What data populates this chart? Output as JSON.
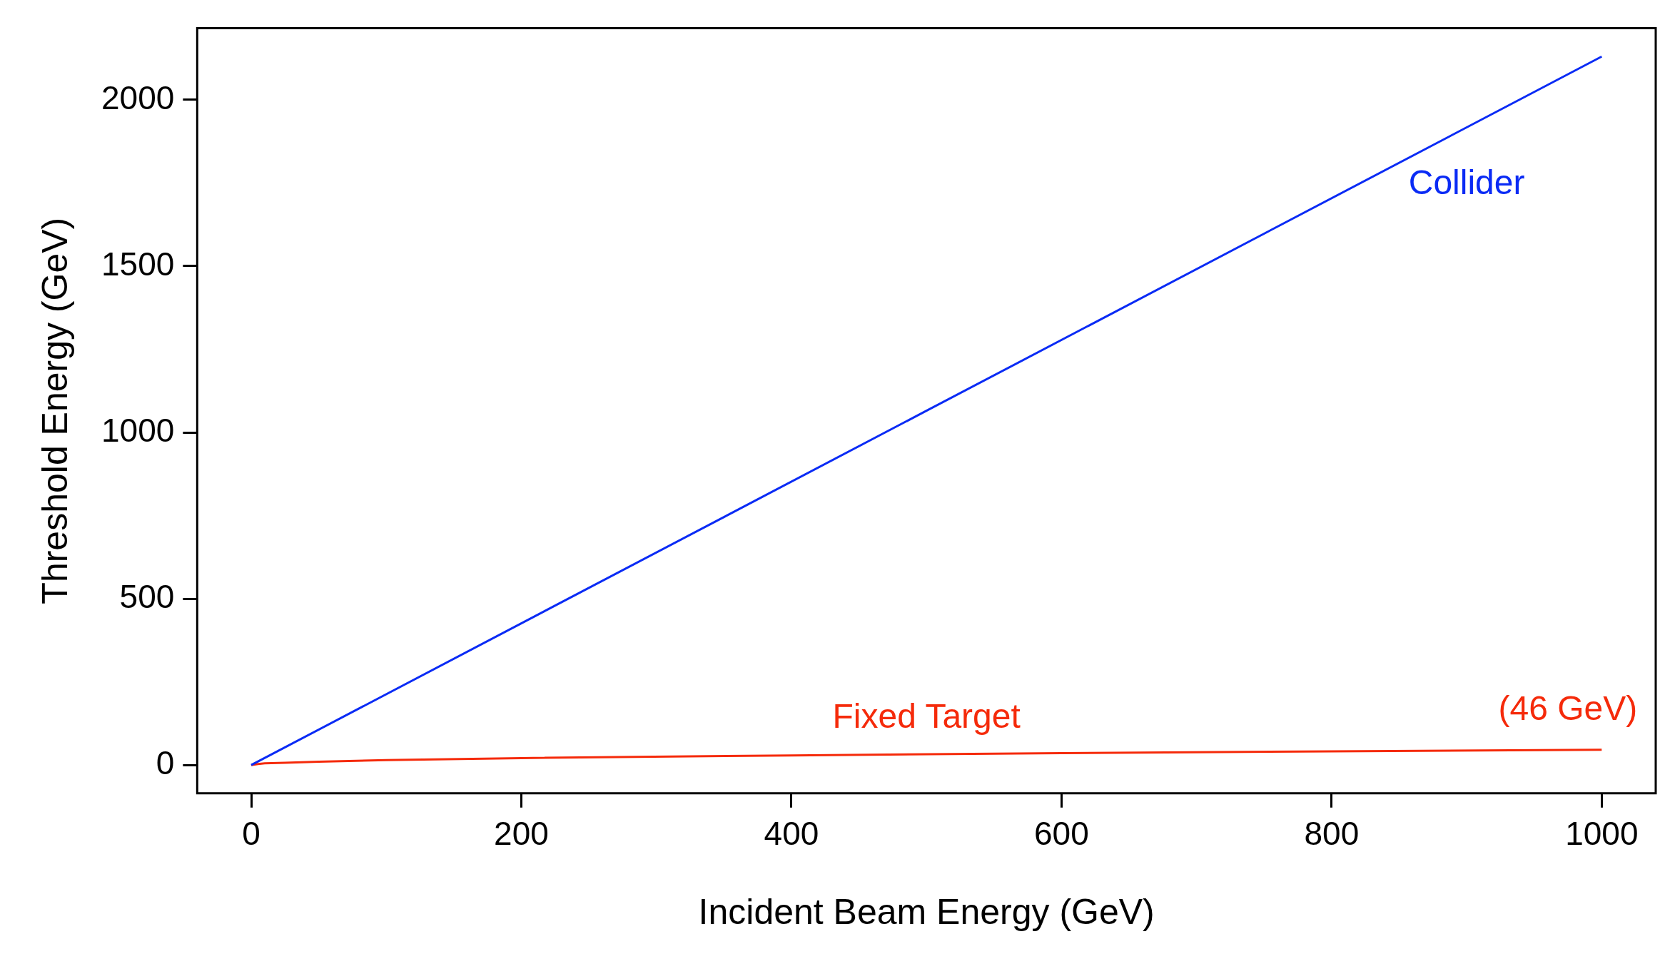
{
  "chart_data": {
    "type": "line",
    "xlabel": "Incident Beam Energy (GeV)",
    "ylabel": "Threshold Energy (GeV)",
    "xlim": [
      -40,
      1040
    ],
    "ylim": [
      -85,
      2215
    ],
    "xticks": [
      0,
      200,
      400,
      600,
      800,
      1000
    ],
    "yticks": [
      0,
      500,
      1000,
      1500,
      2000
    ],
    "grid": false,
    "legend": false,
    "marker": "none",
    "line_style": "solid",
    "series": [
      {
        "name": "Collider",
        "color": "#0a2bf5",
        "x": [
          0,
          500,
          1000
        ],
        "values": [
          0,
          1065,
          2130
        ]
      },
      {
        "name": "Fixed Target",
        "color": "#f52a0a",
        "x": [
          0,
          5,
          10,
          25,
          50,
          100,
          200,
          400,
          600,
          800,
          1000
        ],
        "values": [
          0,
          3,
          5,
          7,
          10,
          15,
          21,
          29,
          36,
          41,
          46
        ]
      }
    ],
    "annotations": [
      {
        "text": "(46 GeV)",
        "x": 1000,
        "y": 46
      }
    ]
  }
}
